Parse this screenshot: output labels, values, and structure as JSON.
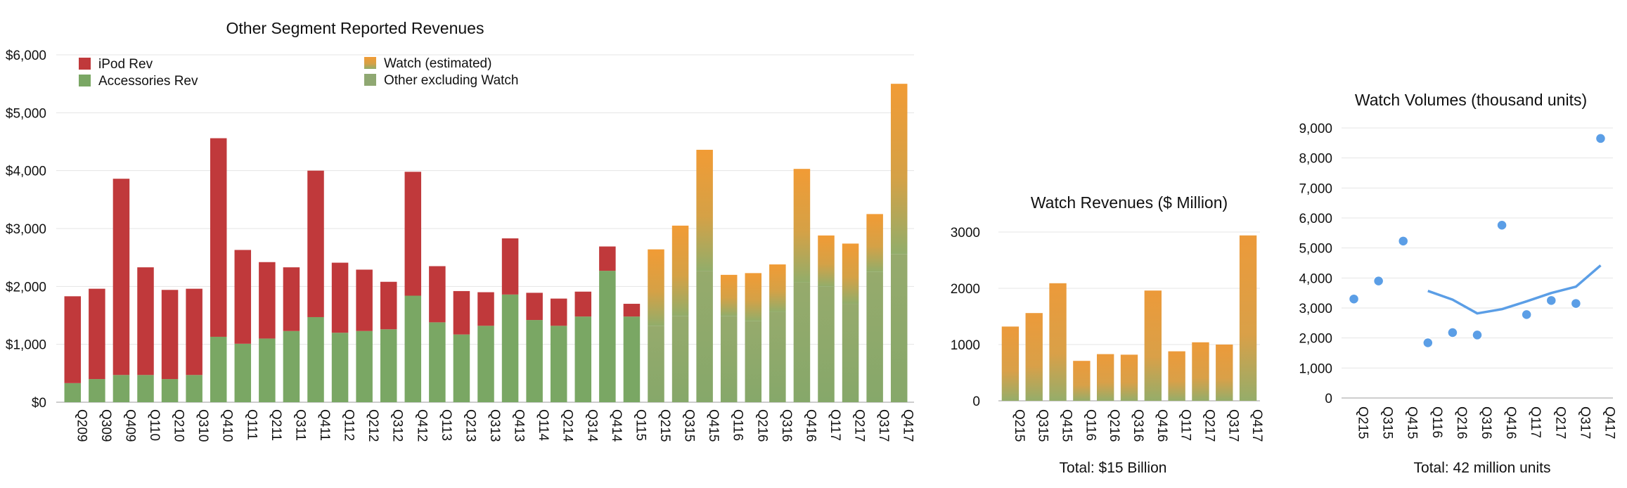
{
  "colors": {
    "ipod": "#c0393b",
    "accessories": "#7aa764",
    "watch_top": "#f19b35",
    "watch_bottom": "#8fb06b",
    "volume_line": "#5b9ee6",
    "volume_points": "#5b9ee6"
  },
  "chart_data": [
    {
      "type": "bar",
      "stacked": true,
      "title": "Other Segment Reported Revenues",
      "categories": [
        "Q209",
        "Q309",
        "Q409",
        "Q110",
        "Q210",
        "Q310",
        "Q410",
        "Q111",
        "Q211",
        "Q311",
        "Q411",
        "Q112",
        "Q212",
        "Q312",
        "Q412",
        "Q113",
        "Q213",
        "Q313",
        "Q413",
        "Q114",
        "Q214",
        "Q314",
        "Q414",
        "Q115",
        "Q215",
        "Q315",
        "Q415",
        "Q116",
        "Q216",
        "Q316",
        "Q416",
        "Q117",
        "Q217",
        "Q317",
        "Q417"
      ],
      "yticks": [
        "$0",
        "$1,000",
        "$2,000",
        "$3,000",
        "$4,000",
        "$5,000",
        "$6,000"
      ],
      "ylim": [
        0,
        6000
      ],
      "legend": [
        {
          "name": "iPod Rev",
          "color": "#c0393b"
        },
        {
          "name": "Accessories Rev",
          "color": "#7aa764"
        },
        {
          "name": "Watch (estimated)",
          "color": "#e09a40"
        },
        {
          "name": "Other excluding Watch",
          "color": "#8fa872"
        }
      ],
      "series": [
        {
          "name": "Accessories Rev",
          "values": [
            330,
            400,
            470,
            470,
            400,
            470,
            1130,
            1010,
            1100,
            1230,
            1470,
            1200,
            1230,
            1260,
            1840,
            1380,
            1170,
            1320,
            1860,
            1420,
            1320,
            1480,
            2270,
            1480,
            null,
            null,
            null,
            null,
            null,
            null,
            null,
            null,
            null,
            null,
            null
          ]
        },
        {
          "name": "iPod Rev",
          "values": [
            1500,
            1560,
            3390,
            1860,
            1540,
            1490,
            3430,
            1620,
            1320,
            1100,
            2530,
            1210,
            1060,
            820,
            2140,
            970,
            750,
            580,
            970,
            470,
            470,
            430,
            420,
            220,
            null,
            null,
            null,
            null,
            null,
            null,
            null,
            null,
            null,
            null,
            null
          ]
        },
        {
          "name": "Other excluding Watch",
          "values": [
            null,
            null,
            null,
            null,
            null,
            null,
            null,
            null,
            null,
            null,
            null,
            null,
            null,
            null,
            null,
            null,
            null,
            null,
            null,
            null,
            null,
            null,
            null,
            null,
            1320,
            1490,
            2270,
            1490,
            1400,
            1560,
            2070,
            2000,
            1700,
            2250,
            2560
          ]
        },
        {
          "name": "Watch (estimated)",
          "values": [
            null,
            null,
            null,
            null,
            null,
            null,
            null,
            null,
            null,
            null,
            null,
            null,
            null,
            null,
            null,
            null,
            null,
            null,
            null,
            null,
            null,
            null,
            null,
            null,
            1320,
            1560,
            2090,
            710,
            830,
            820,
            1960,
            880,
            1040,
            1000,
            2940
          ]
        }
      ]
    },
    {
      "type": "bar",
      "title": "Watch Revenues ($ Million)",
      "categories": [
        "Q215",
        "Q315",
        "Q415",
        "Q116",
        "Q216",
        "Q316",
        "Q416",
        "Q117",
        "Q217",
        "Q317",
        "Q417"
      ],
      "yticks": [
        "0",
        "1000",
        "2000",
        "3000"
      ],
      "ylim": [
        0,
        3000
      ],
      "values": [
        1320,
        1560,
        2090,
        710,
        830,
        820,
        1960,
        880,
        1040,
        1000,
        2940
      ],
      "footnote": "Total: $15 Billion"
    },
    {
      "type": "scatter",
      "title": "Watch Volumes (thousand units)",
      "categories": [
        "Q215",
        "Q315",
        "Q415",
        "Q116",
        "Q216",
        "Q316",
        "Q416",
        "Q117",
        "Q217",
        "Q317",
        "Q417"
      ],
      "yticks": [
        "0",
        "1,000",
        "2,000",
        "3,000",
        "4,000",
        "5,000",
        "6,000",
        "7,000",
        "8,000",
        "9,000"
      ],
      "ylim": [
        0,
        9000
      ],
      "points": [
        3300,
        3900,
        5230,
        1840,
        2180,
        2100,
        5760,
        2780,
        3250,
        3150,
        8650
      ],
      "trend": [
        null,
        null,
        null,
        3570,
        3280,
        2820,
        2960,
        3220,
        3500,
        3710,
        4420
      ],
      "footnote": "Total: 42 million units"
    }
  ]
}
